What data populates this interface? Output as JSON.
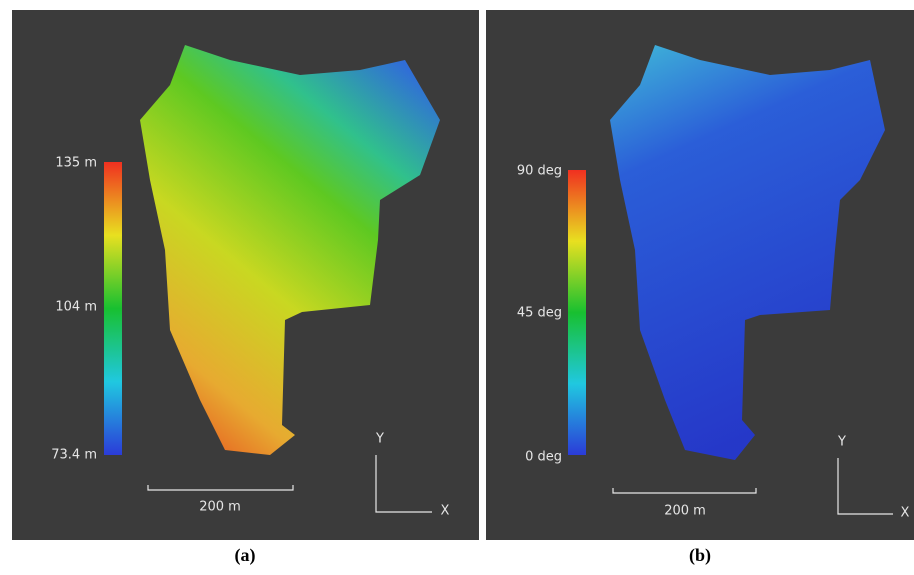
{
  "panels": [
    {
      "colorbar": {
        "labels": [
          "135 m",
          "104 m",
          "73.4 m"
        ]
      },
      "scale_bar": "200 m",
      "axes": {
        "y": "Y",
        "x": "X"
      },
      "caption": "(a)"
    },
    {
      "colorbar": {
        "labels": [
          "90 deg",
          "45 deg",
          "0 deg"
        ]
      },
      "scale_bar": "200 m",
      "axes": {
        "y": "Y",
        "x": "X"
      },
      "caption": "(b)"
    }
  ]
}
